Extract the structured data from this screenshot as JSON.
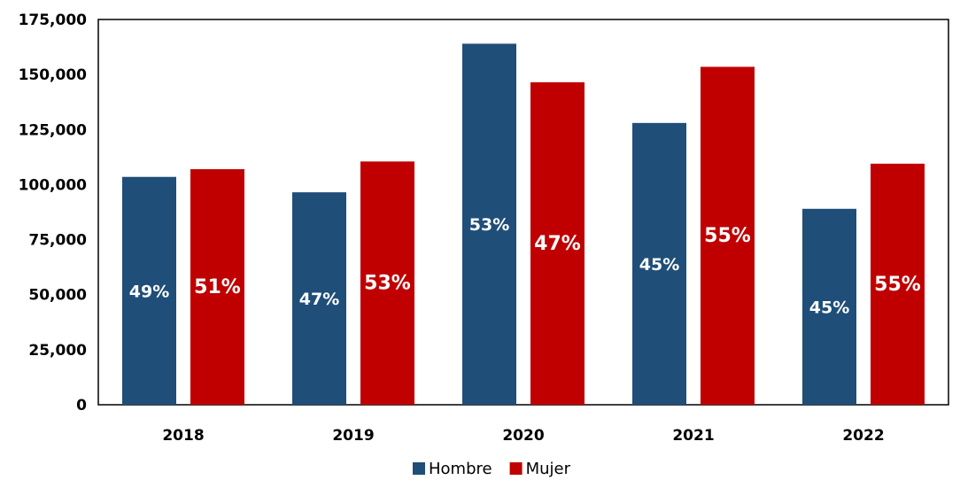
{
  "chart_data": {
    "type": "bar",
    "categories": [
      "2018",
      "2019",
      "2020",
      "2021",
      "2022"
    ],
    "series": [
      {
        "name": "Hombre",
        "color": "#1f4e79",
        "values": [
          103500,
          96500,
          164000,
          128000,
          89000
        ],
        "labels": [
          "49%",
          "47%",
          "53%",
          "45%",
          "45%"
        ]
      },
      {
        "name": "Mujer",
        "color": "#c00000",
        "values": [
          107000,
          110500,
          146500,
          153500,
          109500
        ],
        "labels": [
          "51%",
          "53%",
          "47%",
          "55%",
          "55%"
        ]
      }
    ],
    "ylim": [
      0,
      175000
    ],
    "yticks": [
      "0",
      "25,000",
      "50,000",
      "75,000",
      "100,000",
      "125,000",
      "150,000",
      "175,000"
    ],
    "ytick_values": [
      0,
      25000,
      50000,
      75000,
      100000,
      125000,
      150000,
      175000
    ],
    "legend_position": "bottom",
    "grid": false
  }
}
